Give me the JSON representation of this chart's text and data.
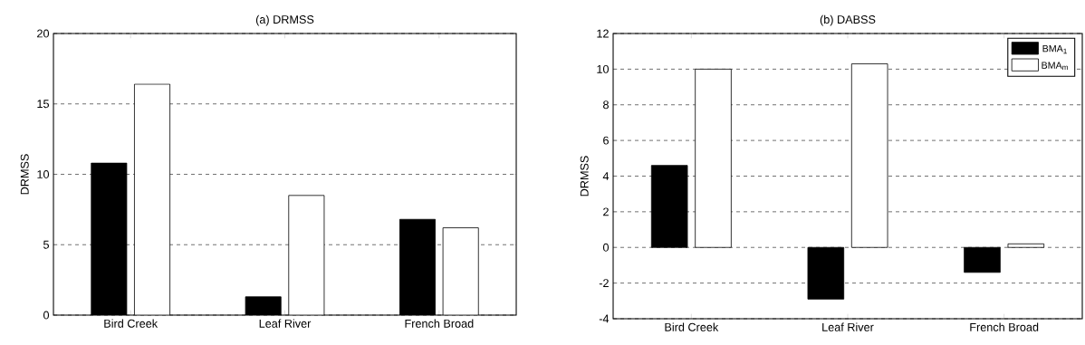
{
  "chart_data": [
    {
      "type": "bar",
      "title": "(a) DRMSS",
      "ylabel": "DRMSS",
      "categories": [
        "Bird Creek",
        "Leaf River",
        "French Broad"
      ],
      "series": [
        {
          "color": "#000000",
          "values": [
            10.8,
            1.3,
            6.8
          ]
        },
        {
          "color": "#ffffff",
          "values": [
            16.4,
            8.5,
            6.2
          ]
        }
      ],
      "ylim": [
        0,
        20
      ],
      "yticks": [
        0,
        5,
        10,
        15,
        20
      ],
      "grid": "y"
    },
    {
      "type": "bar",
      "title": "(b) DABSS",
      "ylabel": "DRMSS",
      "categories": [
        "Bird Creek",
        "Leaf River",
        "French Broad"
      ],
      "series": [
        {
          "name": "BMA$_{1}$",
          "color": "#000000",
          "values": [
            4.6,
            -2.9,
            -1.4
          ]
        },
        {
          "name": "BMA$_{m}$",
          "color": "#ffffff",
          "values": [
            10.0,
            10.3,
            0.2
          ]
        }
      ],
      "ylim": [
        -4,
        12
      ],
      "yticks": [
        -4,
        -2,
        0,
        2,
        4,
        6,
        8,
        10,
        12
      ],
      "grid": "y",
      "legend": "top right"
    }
  ]
}
